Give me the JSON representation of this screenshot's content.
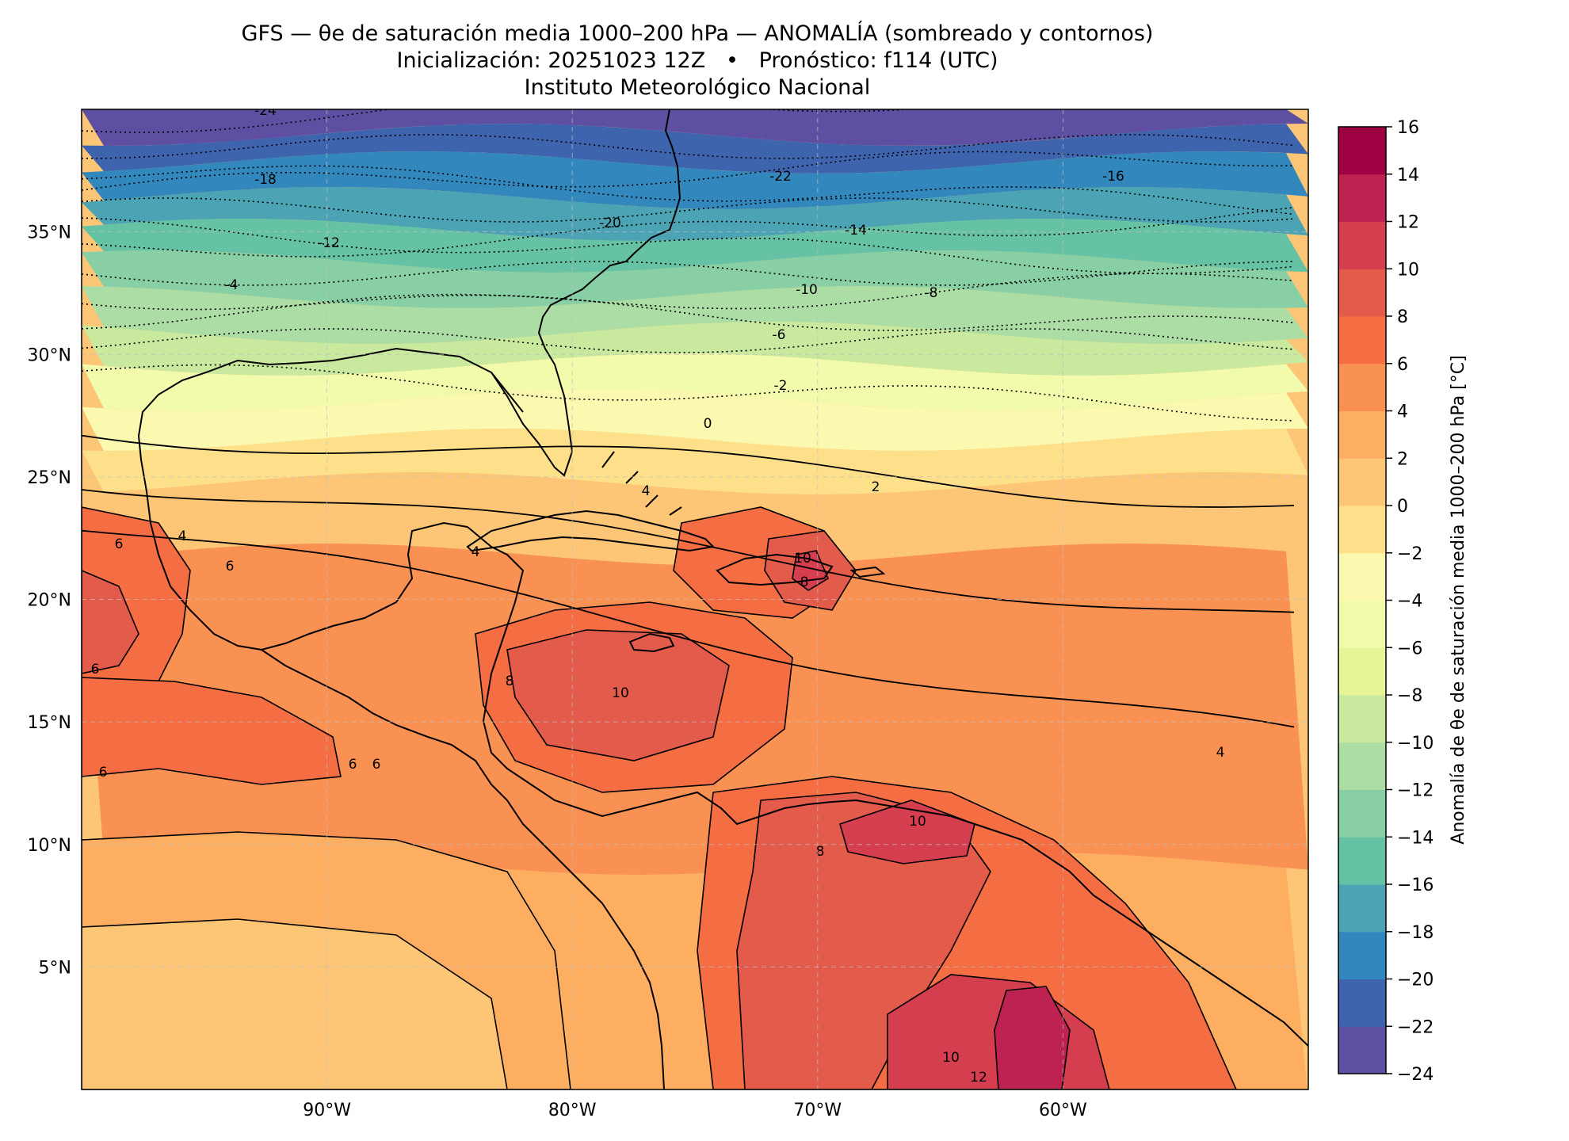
{
  "title": {
    "line1": "GFS — θe de saturación media 1000–200 hPa — ANOMALÍA (sombreado y contornos)",
    "line2": "Inicialización: 20251023 12Z   •   Pronóstico: f114 (UTC)",
    "line3": "Instituto Meteorológico Nacional"
  },
  "map": {
    "lon_range": [
      -100,
      -50
    ],
    "lat_range": [
      0,
      40
    ],
    "lon_ticks": [
      "90°W",
      "80°W",
      "70°W",
      "60°W"
    ],
    "lat_ticks": [
      "5°N",
      "10°N",
      "15°N",
      "20°N",
      "25°N",
      "30°N",
      "35°N"
    ],
    "grid_style": "dashed light gray",
    "band_colors": [
      "#5e4fa2",
      "#3e64ae",
      "#3288bd",
      "#4ba3b3",
      "#66c2a5",
      "#89cfa5",
      "#abdda4",
      "#c8e99e",
      "#e6f598",
      "#f2faac",
      "#fbf8b0",
      "#fee08b",
      "#fdc676",
      "#fdae61",
      "#f99153",
      "#f46d43",
      "#e35b4a",
      "#d53e4f",
      "#be2250",
      "#9e0142"
    ]
  },
  "contour_labels": [
    "-24",
    "-22",
    "-20",
    "-18",
    "-16",
    "-14",
    "-12",
    "-10",
    "-8",
    "-6",
    "-4",
    "-2",
    "0",
    "2",
    "4",
    "4",
    "4",
    "4",
    "6",
    "6",
    "6",
    "6",
    "6",
    "6",
    "8",
    "8",
    "8",
    "10",
    "10",
    "10",
    "10",
    "12"
  ],
  "colorbar": {
    "label": "Anomalía de θe de saturación media 1000–200 hPa [°C]",
    "min": -24,
    "max": 16,
    "step": 2,
    "ticks": [
      "16",
      "14",
      "12",
      "10",
      "8",
      "6",
      "4",
      "2",
      "0",
      "−2",
      "−4",
      "−6",
      "−8",
      "−10",
      "−12",
      "−14",
      "−16",
      "−18",
      "−20",
      "−22",
      "−24"
    ],
    "colors_low_to_high": [
      "#5e4fa2",
      "#3e64ae",
      "#3288bd",
      "#4ba3b3",
      "#66c2a5",
      "#89cfa5",
      "#abdda4",
      "#c8e99e",
      "#e6f598",
      "#f2faac",
      "#fbf8b0",
      "#fee08b",
      "#fdc676",
      "#fdae61",
      "#f99153",
      "#f46d43",
      "#e35b4a",
      "#d53e4f",
      "#be2250",
      "#9e0142"
    ]
  }
}
